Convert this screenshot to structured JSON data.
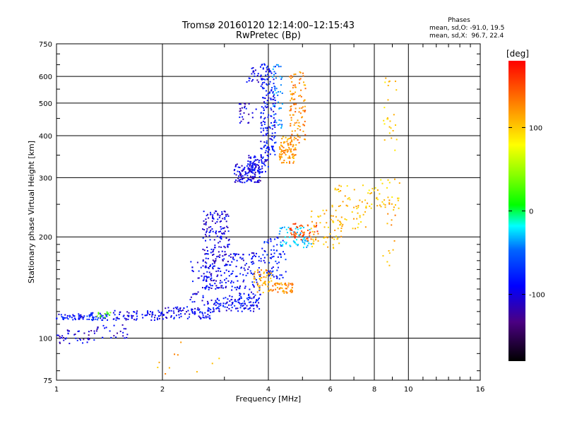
{
  "chart_data": {
    "type": "scatter",
    "title": "Tromsø 20160120 12:14:00–12:15:43",
    "subtitle": "RwPretec (Bp)",
    "xlabel": "Frequency [MHz]",
    "ylabel": "Stationary phase Virtual Height [km]",
    "x_scale": "log",
    "y_scale": "log",
    "xlim": [
      1,
      16
    ],
    "ylim": [
      75,
      750
    ],
    "x_ticks": [
      {
        "value": 1,
        "label": "1"
      },
      {
        "value": 2,
        "label": "2"
      },
      {
        "value": 4,
        "label": "4"
      },
      {
        "value": 6,
        "label": "6"
      },
      {
        "value": 8,
        "label": "8"
      },
      {
        "value": 10,
        "label": "10"
      },
      {
        "value": 16,
        "label": "16"
      }
    ],
    "y_ticks": [
      {
        "value": 75,
        "label": "75"
      },
      {
        "value": 100,
        "label": "100"
      },
      {
        "value": 200,
        "label": "200"
      },
      {
        "value": 300,
        "label": "300"
      },
      {
        "value": 400,
        "label": "400"
      },
      {
        "value": 500,
        "label": "500"
      },
      {
        "value": 600,
        "label": "600"
      },
      {
        "value": 750,
        "label": "750"
      }
    ],
    "grid": true,
    "phases_legend": {
      "heading": "Phases",
      "line1": "mean, sd,O: -91.0, 19.5",
      "line2": "mean, sd,X:  96.7, 22.4"
    },
    "colorbar": {
      "label": "[deg]",
      "range": [
        -180,
        180
      ],
      "ticks": [
        {
          "value": 100,
          "label": "100"
        },
        {
          "value": 0,
          "label": "0"
        },
        {
          "value": -100,
          "label": "-100"
        }
      ]
    },
    "clusters": [
      {
        "xr": [
          1.0,
          1.2
        ],
        "yr": [
          113,
          118
        ],
        "phase": -105,
        "n": 45
      },
      {
        "xr": [
          1.2,
          1.4
        ],
        "yr": [
          113,
          119
        ],
        "phase": -100,
        "n": 40
      },
      {
        "xr": [
          1.3,
          1.45
        ],
        "yr": [
          115,
          120
        ],
        "phase": 30,
        "n": 12
      },
      {
        "xr": [
          1.45,
          2.0
        ],
        "yr": [
          113,
          121
        ],
        "phase": -110,
        "n": 70
      },
      {
        "xr": [
          2.0,
          2.8
        ],
        "yr": [
          114,
          124
        ],
        "phase": -110,
        "n": 90
      },
      {
        "xr": [
          2.8,
          3.8
        ],
        "yr": [
          120,
          132
        ],
        "phase": -105,
        "n": 100
      },
      {
        "xr": [
          1.0,
          1.3
        ],
        "yr": [
          96,
          106
        ],
        "phase": -120,
        "n": 40
      },
      {
        "xr": [
          1.3,
          1.6
        ],
        "yr": [
          100,
          110
        ],
        "phase": -115,
        "n": 25
      },
      {
        "xr": [
          2.6,
          3.1
        ],
        "yr": [
          140,
          240
        ],
        "phase": -115,
        "n": 220
      },
      {
        "xr": [
          2.4,
          2.8
        ],
        "yr": [
          125,
          170
        ],
        "phase": -110,
        "n": 50
      },
      {
        "xr": [
          3.1,
          3.8
        ],
        "yr": [
          130,
          180
        ],
        "phase": -110,
        "n": 120
      },
      {
        "xr": [
          3.6,
          4.1
        ],
        "yr": [
          135,
          160
        ],
        "phase": 120,
        "n": 60
      },
      {
        "xr": [
          4.1,
          4.7
        ],
        "yr": [
          136,
          146
        ],
        "phase": 130,
        "n": 50
      },
      {
        "xr": [
          3.8,
          4.5
        ],
        "yr": [
          150,
          200
        ],
        "phase": -100,
        "n": 70
      },
      {
        "xr": [
          4.3,
          5.3
        ],
        "yr": [
          185,
          215
        ],
        "phase": -40,
        "n": 60
      },
      {
        "xr": [
          4.6,
          5.6
        ],
        "yr": [
          195,
          220
        ],
        "phase": 150,
        "n": 50
      },
      {
        "xr": [
          5.2,
          6.5
        ],
        "yr": [
          185,
          240
        ],
        "phase": 110,
        "n": 60
      },
      {
        "xr": [
          6.0,
          7.8
        ],
        "yr": [
          210,
          285
        ],
        "phase": 110,
        "n": 55
      },
      {
        "xr": [
          7.5,
          9.5
        ],
        "yr": [
          240,
          300
        ],
        "phase": 100,
        "n": 40
      },
      {
        "xr": [
          3.2,
          3.8
        ],
        "yr": [
          290,
          330
        ],
        "phase": -115,
        "n": 110
      },
      {
        "xr": [
          3.5,
          4.0
        ],
        "yr": [
          310,
          350
        ],
        "phase": -110,
        "n": 70
      },
      {
        "xr": [
          3.8,
          4.2
        ],
        "yr": [
          350,
          660
        ],
        "phase": -105,
        "n": 170
      },
      {
        "xr": [
          4.1,
          4.4
        ],
        "yr": [
          420,
          660
        ],
        "phase": -60,
        "n": 40
      },
      {
        "xr": [
          4.3,
          4.8
        ],
        "yr": [
          330,
          400
        ],
        "phase": 125,
        "n": 90
      },
      {
        "xr": [
          4.6,
          5.1
        ],
        "yr": [
          380,
          620
        ],
        "phase": 130,
        "n": 100
      },
      {
        "xr": [
          3.3,
          3.7
        ],
        "yr": [
          430,
          500
        ],
        "phase": -115,
        "n": 25
      },
      {
        "xr": [
          3.45,
          3.75
        ],
        "yr": [
          570,
          640
        ],
        "phase": -115,
        "n": 20
      },
      {
        "xr": [
          1.6,
          3.0
        ],
        "yr": [
          78,
          100
        ],
        "phase": 120,
        "n": 10
      },
      {
        "xr": [
          8.5,
          9.3
        ],
        "yr": [
          350,
          600
        ],
        "phase": 100,
        "n": 25
      },
      {
        "xr": [
          8.4,
          9.2
        ],
        "yr": [
          160,
          260
        ],
        "phase": 120,
        "n": 15
      }
    ]
  }
}
